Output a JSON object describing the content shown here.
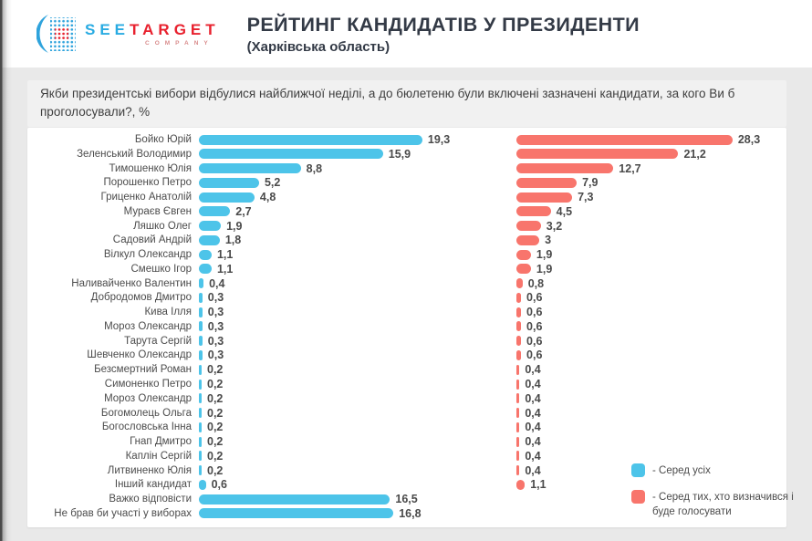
{
  "header": {
    "logo": {
      "see": "SEE",
      "target": "TARGET",
      "company": "COMPANY"
    },
    "title": "РЕЙТИНГ КАНДИДАТІВ У ПРЕЗИДЕНТИ",
    "subtitle": "(Харківська область)"
  },
  "question": "Якби президентські вибори відбулися найближчої неділі, а до бюлетеню були включені зазначені кандидати, за кого Ви б проголосували?, %",
  "colors": {
    "all_series": "#4DC4E9",
    "decided_series": "#F8756C",
    "title_text": "#333A46",
    "label_text": "#4C4C4C",
    "question_bg": "#F1F1F1",
    "page_bg": "#E9E9E9",
    "logo_blue": "#29ABE2",
    "logo_red": "#E8212E"
  },
  "legend": {
    "items": [
      {
        "label": "- Серед усіх"
      },
      {
        "label": "- Серед тих, хто визначився і буде голосувати"
      }
    ]
  },
  "chart_data": {
    "type": "bar",
    "orientation": "horizontal",
    "title": "РЕЙТИНГ КАНДИДАТІВ У ПРЕЗИДЕНТИ (Харківська область)",
    "xlabel": "",
    "ylabel": "",
    "value_suffix": "%",
    "grid": false,
    "legend_position": "bottom-right",
    "categories": [
      "Бойко Юрій",
      "Зеленський Володимир",
      "Тимошенко Юлія",
      "Порошенко Петро",
      "Гриценко Анатолій",
      "Мураєв Євген",
      "Ляшко Олег",
      "Садовий Андрій",
      "Вілкул Олександр",
      "Смешко Ігор",
      "Наливайченко Валентин",
      "Добродомов Дмитро",
      "Кива Ілля",
      "Мороз Олександр",
      "Тарута Сергій",
      "Шевченко Олександр",
      "Безсмертний Роман",
      "Симоненко Петро",
      "Мороз Олександр",
      "Богомолець Ольга",
      "Богословська Інна",
      "Гнап Дмитро",
      "Каплін Сергій",
      "Литвиненко Юлія",
      "Інший кандидат",
      "Важко відповісти",
      "Не брав би участі у виборах"
    ],
    "series": [
      {
        "name": "Серед усіх",
        "color": "#4DC4E9",
        "values": [
          19.3,
          15.9,
          8.8,
          5.2,
          4.8,
          2.7,
          1.9,
          1.8,
          1.1,
          1.1,
          0.4,
          0.3,
          0.3,
          0.3,
          0.3,
          0.3,
          0.2,
          0.2,
          0.2,
          0.2,
          0.2,
          0.2,
          0.2,
          0.2,
          0.6,
          16.5,
          16.8
        ],
        "labels": [
          "19,3",
          "15,9",
          "8,8",
          "5,2",
          "4,8",
          "2,7",
          "1,9",
          "1,8",
          "1,1",
          "1,1",
          "0,4",
          "0,3",
          "0,3",
          "0,3",
          "0,3",
          "0,3",
          "0,2",
          "0,2",
          "0,2",
          "0,2",
          "0,2",
          "0,2",
          "0,2",
          "0,2",
          "0,6",
          "16,5",
          "16,8"
        ]
      },
      {
        "name": "Серед тих, хто визначився і буде голосувати",
        "color": "#F8756C",
        "values": [
          28.3,
          21.2,
          12.7,
          7.9,
          7.3,
          4.5,
          3.2,
          3,
          1.9,
          1.9,
          0.8,
          0.6,
          0.6,
          0.6,
          0.6,
          0.6,
          0.4,
          0.4,
          0.4,
          0.4,
          0.4,
          0.4,
          0.4,
          0.4,
          1.1,
          null,
          null
        ],
        "labels": [
          "28,3",
          "21,2",
          "12,7",
          "7,9",
          "7,3",
          "4,5",
          "3,2",
          "3",
          "1,9",
          "1,9",
          "0,8",
          "0,6",
          "0,6",
          "0,6",
          "0,6",
          "0,6",
          "0,4",
          "0,4",
          "0,4",
          "0,4",
          "0,4",
          "0,4",
          "0,4",
          "0,4",
          "1,1",
          null,
          null
        ]
      }
    ]
  }
}
